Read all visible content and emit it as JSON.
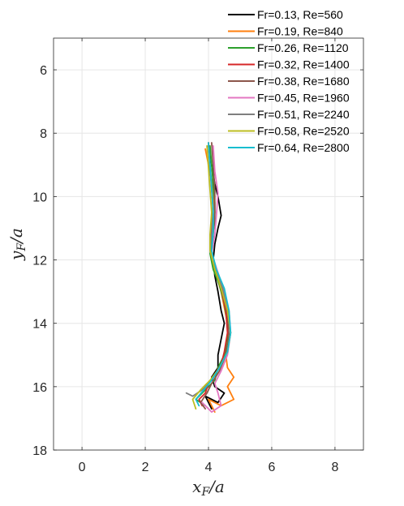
{
  "chart_data": {
    "type": "line",
    "title": "",
    "xlabel": {
      "main": "x",
      "sub": "F",
      "suffix": "/a"
    },
    "ylabel": {
      "main": "y",
      "sub": "F",
      "suffix": "/a"
    },
    "xlim": [
      -0.9,
      8.9
    ],
    "ylim": [
      5.0,
      18.0
    ],
    "y_reversed": true,
    "xticks": [
      0,
      2,
      4,
      6,
      8
    ],
    "yticks": [
      6,
      8,
      10,
      12,
      14,
      16,
      18
    ],
    "grid": true,
    "legend_position": "top-right",
    "series": [
      {
        "name": "Fr=0.13, Re=560",
        "color": "#000000",
        "points": [
          [
            4.0,
            8.4
          ],
          [
            4.1,
            9.0
          ],
          [
            4.2,
            9.6
          ],
          [
            4.3,
            10.0
          ],
          [
            4.4,
            10.6
          ],
          [
            4.3,
            11.0
          ],
          [
            4.2,
            11.5
          ],
          [
            4.15,
            12.0
          ],
          [
            4.2,
            12.5
          ],
          [
            4.3,
            13.0
          ],
          [
            4.4,
            13.6
          ],
          [
            4.5,
            14.0
          ],
          [
            4.4,
            14.5
          ],
          [
            4.3,
            15.0
          ],
          [
            4.3,
            15.4
          ],
          [
            4.1,
            15.7
          ],
          [
            4.2,
            16.0
          ],
          [
            4.5,
            16.2
          ],
          [
            4.3,
            16.5
          ],
          [
            3.9,
            16.3
          ],
          [
            4.1,
            16.7
          ]
        ]
      },
      {
        "name": "Fr=0.19, Re=840",
        "color": "#ff7f0e",
        "points": [
          [
            3.9,
            8.5
          ],
          [
            4.0,
            9.0
          ],
          [
            4.1,
            9.5
          ],
          [
            4.15,
            10.0
          ],
          [
            4.2,
            10.5
          ],
          [
            4.1,
            11.0
          ],
          [
            4.05,
            11.5
          ],
          [
            4.1,
            12.0
          ],
          [
            4.25,
            12.5
          ],
          [
            4.4,
            13.0
          ],
          [
            4.5,
            13.5
          ],
          [
            4.6,
            14.0
          ],
          [
            4.6,
            14.5
          ],
          [
            4.55,
            15.0
          ],
          [
            4.6,
            15.4
          ],
          [
            4.8,
            15.7
          ],
          [
            4.6,
            16.0
          ],
          [
            4.8,
            16.4
          ],
          [
            4.4,
            16.6
          ],
          [
            4.0,
            16.4
          ],
          [
            4.2,
            16.8
          ]
        ]
      },
      {
        "name": "Fr=0.26, Re=1120",
        "color": "#2ca02c",
        "points": [
          [
            4.05,
            8.4
          ],
          [
            4.1,
            9.0
          ],
          [
            4.15,
            9.6
          ],
          [
            4.2,
            10.2
          ],
          [
            4.2,
            10.8
          ],
          [
            4.1,
            11.4
          ],
          [
            4.05,
            11.8
          ],
          [
            4.15,
            12.3
          ],
          [
            4.35,
            12.8
          ],
          [
            4.5,
            13.4
          ],
          [
            4.6,
            14.0
          ],
          [
            4.6,
            14.6
          ],
          [
            4.5,
            15.0
          ],
          [
            4.3,
            15.4
          ],
          [
            4.2,
            15.8
          ],
          [
            4.0,
            16.0
          ],
          [
            3.8,
            16.2
          ],
          [
            3.6,
            16.4
          ],
          [
            3.9,
            16.6
          ]
        ]
      },
      {
        "name": "Fr=0.32, Re=1400",
        "color": "#d62728",
        "points": [
          [
            4.0,
            8.3
          ],
          [
            4.05,
            9.0
          ],
          [
            4.1,
            9.7
          ],
          [
            4.15,
            10.4
          ],
          [
            4.1,
            11.0
          ],
          [
            4.05,
            11.6
          ],
          [
            4.2,
            12.2
          ],
          [
            4.4,
            12.9
          ],
          [
            4.55,
            13.6
          ],
          [
            4.6,
            14.3
          ],
          [
            4.5,
            14.9
          ],
          [
            4.4,
            15.3
          ],
          [
            4.2,
            15.6
          ],
          [
            4.0,
            15.9
          ],
          [
            3.9,
            16.2
          ],
          [
            3.7,
            16.4
          ],
          [
            3.8,
            16.6
          ]
        ]
      },
      {
        "name": "Fr=0.38, Re=1680",
        "color": "#8c564b",
        "points": [
          [
            4.1,
            8.3
          ],
          [
            4.15,
            9.0
          ],
          [
            4.2,
            9.8
          ],
          [
            4.2,
            10.5
          ],
          [
            4.15,
            11.2
          ],
          [
            4.1,
            11.8
          ],
          [
            4.25,
            12.4
          ],
          [
            4.45,
            13.0
          ],
          [
            4.6,
            13.7
          ],
          [
            4.65,
            14.4
          ],
          [
            4.55,
            15.0
          ],
          [
            4.35,
            15.5
          ],
          [
            4.1,
            15.9
          ],
          [
            3.95,
            16.2
          ],
          [
            3.75,
            16.5
          ],
          [
            3.9,
            16.7
          ]
        ]
      },
      {
        "name": "Fr=0.45, Re=1960",
        "color": "#e377c2",
        "points": [
          [
            4.15,
            8.4
          ],
          [
            4.2,
            9.2
          ],
          [
            4.3,
            9.9
          ],
          [
            4.25,
            10.6
          ],
          [
            4.2,
            11.2
          ],
          [
            4.1,
            11.8
          ],
          [
            4.3,
            12.4
          ],
          [
            4.5,
            13.0
          ],
          [
            4.65,
            13.6
          ],
          [
            4.7,
            14.3
          ],
          [
            4.6,
            15.0
          ],
          [
            4.4,
            15.5
          ],
          [
            4.2,
            15.9
          ],
          [
            4.3,
            16.2
          ],
          [
            4.4,
            16.6
          ],
          [
            4.1,
            16.8
          ],
          [
            3.8,
            16.5
          ]
        ]
      },
      {
        "name": "Fr=0.51, Re=2240",
        "color": "#7f7f7f",
        "points": [
          [
            4.0,
            8.4
          ],
          [
            4.05,
            9.1
          ],
          [
            4.1,
            9.8
          ],
          [
            4.15,
            10.5
          ],
          [
            4.1,
            11.2
          ],
          [
            4.05,
            11.7
          ],
          [
            4.2,
            12.3
          ],
          [
            4.45,
            12.9
          ],
          [
            4.6,
            13.6
          ],
          [
            4.7,
            14.3
          ],
          [
            4.6,
            14.9
          ],
          [
            4.35,
            15.4
          ],
          [
            4.1,
            15.8
          ],
          [
            3.8,
            16.1
          ],
          [
            3.5,
            16.3
          ],
          [
            3.3,
            16.2
          ]
        ]
      },
      {
        "name": "Fr=0.58, Re=2520",
        "color": "#bcbd22",
        "points": [
          [
            3.95,
            8.4
          ],
          [
            4.0,
            9.1
          ],
          [
            4.05,
            9.8
          ],
          [
            4.1,
            10.5
          ],
          [
            4.05,
            11.2
          ],
          [
            4.05,
            11.7
          ],
          [
            4.2,
            12.3
          ],
          [
            4.4,
            12.9
          ],
          [
            4.6,
            13.6
          ],
          [
            4.7,
            14.3
          ],
          [
            4.6,
            14.9
          ],
          [
            4.35,
            15.4
          ],
          [
            4.05,
            15.8
          ],
          [
            3.75,
            16.1
          ],
          [
            3.5,
            16.4
          ],
          [
            3.6,
            16.7
          ]
        ]
      },
      {
        "name": "Fr=0.64, Re=2800",
        "color": "#17becf",
        "points": [
          [
            4.0,
            8.3
          ],
          [
            4.05,
            9.0
          ],
          [
            4.1,
            9.7
          ],
          [
            4.15,
            10.4
          ],
          [
            4.15,
            11.1
          ],
          [
            4.1,
            11.7
          ],
          [
            4.25,
            12.3
          ],
          [
            4.5,
            12.9
          ],
          [
            4.65,
            13.6
          ],
          [
            4.7,
            14.3
          ],
          [
            4.6,
            14.9
          ],
          [
            4.35,
            15.4
          ],
          [
            4.1,
            15.8
          ],
          [
            3.85,
            16.1
          ],
          [
            3.6,
            16.4
          ],
          [
            3.7,
            16.6
          ]
        ]
      }
    ]
  }
}
